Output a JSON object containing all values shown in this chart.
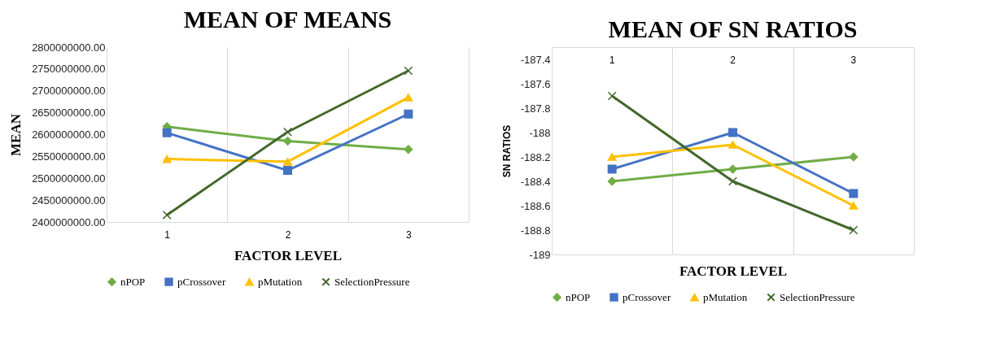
{
  "chart_data": [
    {
      "type": "line",
      "title": "MEAN OF MEANS",
      "xlabel": "FACTOR LEVEL",
      "ylabel": "MEAN",
      "categories": [
        "1",
        "2",
        "3"
      ],
      "series": [
        {
          "name": "nPOP",
          "color": "#70ad47",
          "marker": "diamond",
          "values": [
            2618000000,
            2585000000,
            2566000000
          ]
        },
        {
          "name": "pCrossover",
          "color": "#4472c4",
          "marker": "square",
          "values": [
            2604000000,
            2518000000,
            2647000000
          ]
        },
        {
          "name": "pMutation",
          "color": "#ffc000",
          "marker": "triangle",
          "values": [
            2544000000,
            2538000000,
            2685000000
          ]
        },
        {
          "name": "SelectionPressure",
          "color": "#43682b",
          "marker": "cross",
          "values": [
            2416000000,
            2606000000,
            2746000000
          ]
        }
      ],
      "ylim": [
        2400000000,
        2800000000
      ],
      "yticks": [
        {
          "value": 2400000000,
          "label": "2400000000.00"
        },
        {
          "value": 2450000000,
          "label": "2450000000.00"
        },
        {
          "value": 2500000000,
          "label": "2500000000.00"
        },
        {
          "value": 2550000000,
          "label": "2550000000.00"
        },
        {
          "value": 2600000000,
          "label": "2600000000.00"
        },
        {
          "value": 2650000000,
          "label": "2650000000.00"
        },
        {
          "value": 2700000000,
          "label": "2700000000.00"
        },
        {
          "value": 2750000000,
          "label": "2750000000.00"
        },
        {
          "value": 2800000000,
          "label": "2800000000.00"
        }
      ],
      "grid": "x",
      "legend": "bottom"
    },
    {
      "type": "line",
      "title": "MEAN OF SN RATIOS",
      "xlabel": "FACTOR LEVEL",
      "ylabel": "SN  RATIOS",
      "categories": [
        "1",
        "2",
        "3"
      ],
      "series": [
        {
          "name": "nPOP",
          "color": "#70ad47",
          "marker": "diamond",
          "values": [
            -188.4,
            -188.3,
            -188.2
          ]
        },
        {
          "name": "pCrossover",
          "color": "#4472c4",
          "marker": "square",
          "values": [
            -188.3,
            -188.0,
            -188.5
          ]
        },
        {
          "name": "pMutation",
          "color": "#ffc000",
          "marker": "triangle",
          "values": [
            -188.2,
            -188.1,
            -188.6
          ]
        },
        {
          "name": "SelectionPressure",
          "color": "#43682b",
          "marker": "cross",
          "values": [
            -187.7,
            -188.4,
            -188.8
          ]
        }
      ],
      "ylim": [
        -189,
        -187.3
      ],
      "yticks": [
        -189,
        -188.8,
        -188.6,
        -188.4,
        -188.2,
        -188,
        -187.8,
        -187.6,
        -187.4
      ],
      "grid": "x",
      "legend": "bottom"
    }
  ]
}
